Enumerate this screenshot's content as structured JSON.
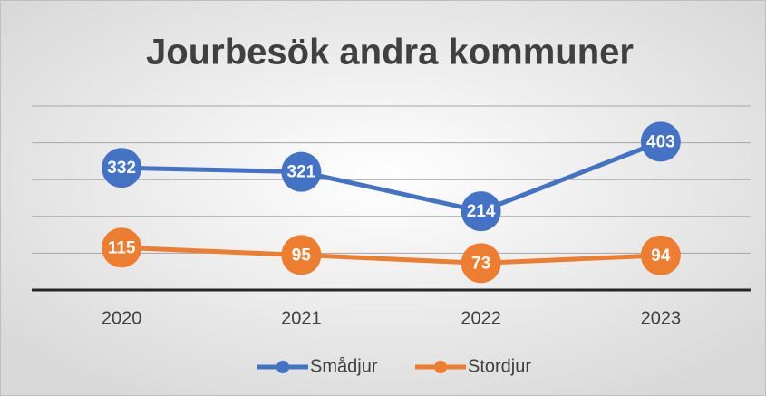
{
  "chart_data": {
    "type": "line",
    "title": "Jourbesök andra kommuner",
    "categories": [
      "2020",
      "2021",
      "2022",
      "2023"
    ],
    "series": [
      {
        "name": "Smådjur",
        "color": "#4472c4",
        "values": [
          332,
          321,
          214,
          403
        ]
      },
      {
        "name": "Stordjur",
        "color": "#ed7d31",
        "values": [
          115,
          95,
          73,
          94
        ]
      }
    ],
    "ylim": [
      0,
      500
    ],
    "yticks": [
      0,
      100,
      200,
      300,
      400,
      500
    ],
    "grid": true,
    "legend": "bottom"
  }
}
